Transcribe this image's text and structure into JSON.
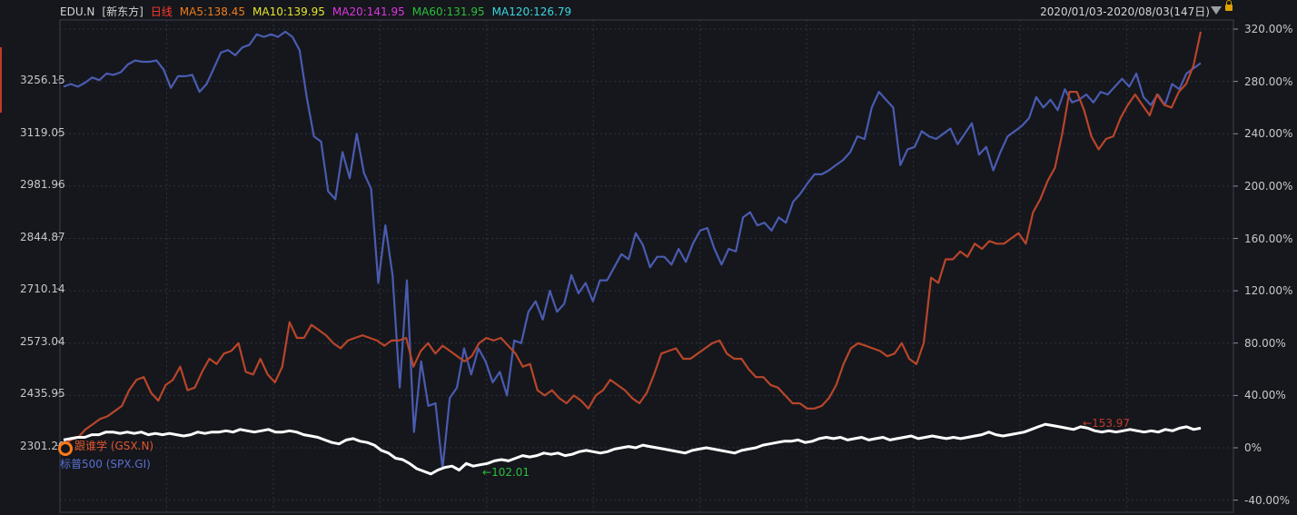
{
  "header": {
    "symbol": "EDU.N",
    "name": "[新东方]",
    "period": "日线",
    "ma5": "MA5:138.45",
    "ma10": "MA10:139.95",
    "ma20": "MA20:141.95",
    "ma60": "MA60:131.95",
    "ma120": "MA120:126.79",
    "date_range": "2020/01/03-2020/08/03(147日)"
  },
  "colors": {
    "background": "#15171c",
    "edu": "#4a5bb0",
    "gsx": "#b8452a",
    "spx": "#ffffff",
    "ma5": "#f07c1a",
    "ma10": "#e8e52a",
    "ma20": "#e033e0",
    "ma60": "#2bbf3c",
    "ma120": "#39d7e0",
    "period": "#ff3b2f",
    "grid": "#2c3340"
  },
  "legend": {
    "gsx": "跟谁学 (GSX.N)",
    "spx": "标普500 (SPX.GI)"
  },
  "annotations": {
    "low": "102.01",
    "high": "153.97"
  },
  "chart_data": {
    "type": "line",
    "left_axis_ticks": [
      "3256.15",
      "3119.05",
      "2981.96",
      "2844.87",
      "2710.14",
      "2573.04",
      "2435.95",
      "2301.20"
    ],
    "right_axis_ticks": [
      "320.00%",
      "280.00%",
      "240.00%",
      "200.00%",
      "160.00%",
      "120.00%",
      "80.00%",
      "40.00%",
      "0%",
      "-40.00%"
    ],
    "ylim_percent": [
      -40,
      320
    ],
    "series": [
      {
        "name": "EDU.N",
        "axis": "percent",
        "values": [
          276,
          278,
          276,
          279,
          283,
          281,
          286,
          285,
          287,
          293,
          296,
          295,
          295,
          296,
          289,
          275,
          284,
          284,
          285,
          272,
          278,
          290,
          302,
          304,
          300,
          306,
          308,
          316,
          314,
          316,
          314,
          318,
          314,
          304,
          268,
          238,
          234,
          196,
          190,
          226,
          206,
          240,
          210,
          198,
          126,
          170,
          132,
          46,
          128,
          12,
          66,
          32,
          34,
          -16,
          38,
          46,
          76,
          56,
          76,
          66,
          50,
          58,
          40,
          82,
          80,
          104,
          112,
          98,
          120,
          104,
          110,
          132,
          118,
          126,
          112,
          128,
          128,
          138,
          148,
          144,
          164,
          155,
          138,
          146,
          146,
          140,
          152,
          142,
          156,
          166,
          168,
          152,
          140,
          152,
          150,
          176,
          180,
          170,
          172,
          166,
          176,
          172,
          188,
          194,
          202,
          209,
          209,
          212,
          216,
          220,
          226,
          238,
          236,
          260,
          272,
          266,
          260,
          216,
          228,
          230,
          242,
          238,
          236,
          240,
          244,
          232,
          240,
          248,
          224,
          230,
          212,
          226,
          238,
          242,
          246,
          252,
          268,
          260,
          266,
          258,
          274,
          264,
          266,
          270,
          264,
          272,
          270,
          276,
          282,
          276,
          286,
          268,
          262,
          270,
          262,
          278,
          274,
          286,
          290,
          294
        ],
        "stroke": "#4a5bb0"
      },
      {
        "name": "跟谁学 (GSX.N)",
        "axis": "percent",
        "values": [
          2,
          6,
          8,
          14,
          18,
          22,
          24,
          28,
          32,
          44,
          52,
          54,
          42,
          36,
          48,
          52,
          62,
          44,
          46,
          58,
          68,
          64,
          72,
          74,
          80,
          58,
          56,
          68,
          56,
          50,
          62,
          96,
          84,
          84,
          94,
          90,
          86,
          80,
          76,
          82,
          84,
          86,
          84,
          82,
          78,
          82,
          82,
          84,
          62,
          74,
          80,
          72,
          78,
          74,
          70,
          66,
          70,
          80,
          84,
          82,
          84,
          78,
          72,
          62,
          64,
          44,
          40,
          44,
          38,
          34,
          40,
          36,
          30,
          40,
          44,
          52,
          48,
          44,
          38,
          34,
          42,
          56,
          72,
          74,
          76,
          68,
          68,
          72,
          76,
          80,
          82,
          72,
          68,
          68,
          60,
          54,
          54,
          48,
          46,
          40,
          34,
          34,
          30,
          30,
          32,
          38,
          48,
          64,
          76,
          80,
          78,
          76,
          74,
          70,
          72,
          80,
          68,
          64,
          80,
          130,
          126,
          144,
          144,
          150,
          146,
          156,
          152,
          158,
          156,
          156,
          160,
          164,
          156,
          180,
          190,
          204,
          214,
          240,
          272,
          272,
          258,
          238,
          228,
          236,
          238,
          252,
          262,
          270,
          262,
          254,
          270,
          262,
          260,
          272,
          278,
          292,
          318
        ],
        "stroke": "#b8452a"
      },
      {
        "name": "标普500 (SPX.GI)",
        "axis": "percent",
        "values": [
          6,
          7,
          8,
          8,
          10,
          10,
          12,
          12,
          11,
          12,
          11,
          12,
          10,
          11,
          10,
          11,
          10,
          9,
          10,
          12,
          11,
          12,
          12,
          13,
          12,
          14,
          13,
          12,
          13,
          14,
          12,
          12,
          13,
          12,
          10,
          9,
          8,
          6,
          4,
          3,
          6,
          7,
          5,
          4,
          2,
          -2,
          -4,
          -8,
          -9,
          -12,
          -16,
          -18,
          -20,
          -17,
          -15,
          -14,
          -17,
          -12,
          -14,
          -13,
          -12,
          -10,
          -9,
          -10,
          -8,
          -6,
          -7,
          -6,
          -4,
          -5,
          -4,
          -6,
          -5,
          -3,
          -2,
          -3,
          -4,
          -3,
          -1,
          0,
          1,
          0,
          2,
          1,
          0,
          -1,
          -2,
          -3,
          -4,
          -2,
          -1,
          0,
          -1,
          -2,
          -3,
          -4,
          -2,
          -1,
          0,
          2,
          3,
          4,
          5,
          5,
          6,
          4,
          5,
          7,
          8,
          7,
          8,
          6,
          7,
          8,
          6,
          7,
          8,
          6,
          7,
          8,
          9,
          7,
          8,
          9,
          8,
          7,
          8,
          7,
          8,
          9,
          10,
          12,
          10,
          9,
          10,
          11,
          12,
          14,
          16,
          18,
          17,
          16,
          15,
          14,
          16,
          15,
          13,
          12,
          13,
          12,
          13,
          14,
          13,
          12,
          13,
          12,
          14,
          13,
          15,
          16,
          14,
          15
        ],
        "stroke": "#ffffff"
      }
    ],
    "grid": true
  }
}
